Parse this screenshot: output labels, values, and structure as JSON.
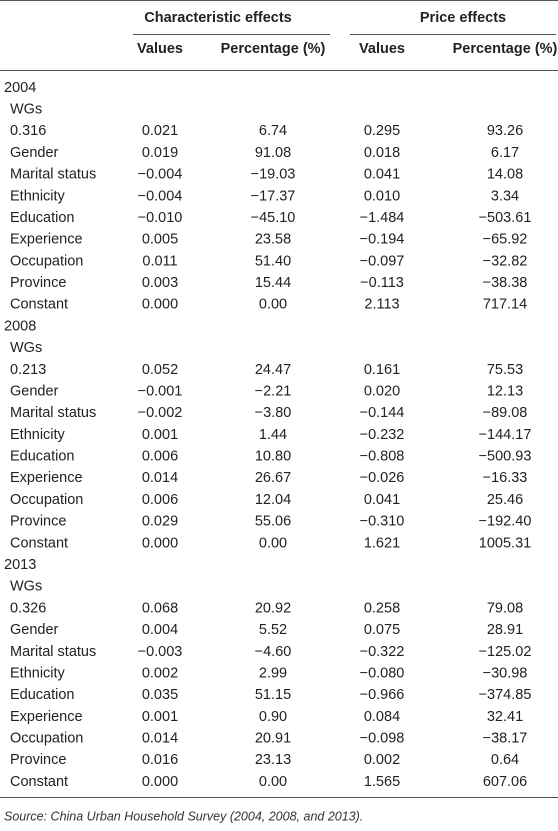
{
  "table": {
    "group_headers": [
      "Characteristic effects",
      "Price effects"
    ],
    "column_headers": [
      "Values",
      "Percentage (%)",
      "Values",
      "Percentage (%)"
    ],
    "sections": [
      {
        "year": "2004",
        "subheader": "WGs",
        "rows": [
          [
            "0.316",
            "0.021",
            "6.74",
            "0.295",
            "93.26"
          ],
          [
            "Gender",
            "0.019",
            "91.08",
            "0.018",
            "6.17"
          ],
          [
            "Marital status",
            "−0.004",
            "−19.03",
            "0.041",
            "14.08"
          ],
          [
            "Ethnicity",
            "−0.004",
            "−17.37",
            "0.010",
            "3.34"
          ],
          [
            "Education",
            "−0.010",
            "−45.10",
            "−1.484",
            "−503.61"
          ],
          [
            "Experience",
            "0.005",
            "23.58",
            "−0.194",
            "−65.92"
          ],
          [
            "Occupation",
            "0.011",
            "51.40",
            "−0.097",
            "−32.82"
          ],
          [
            "Province",
            "0.003",
            "15.44",
            "−0.113",
            "−38.38"
          ],
          [
            "Constant",
            "0.000",
            "0.00",
            "2.113",
            "717.14"
          ]
        ]
      },
      {
        "year": "2008",
        "subheader": "WGs",
        "rows": [
          [
            "0.213",
            "0.052",
            "24.47",
            "0.161",
            "75.53"
          ],
          [
            "Gender",
            "−0.001",
            "−2.21",
            "0.020",
            "12.13"
          ],
          [
            "Marital status",
            "−0.002",
            "−3.80",
            "−0.144",
            "−89.08"
          ],
          [
            "Ethnicity",
            "0.001",
            "1.44",
            "−0.232",
            "−144.17"
          ],
          [
            "Education",
            "0.006",
            "10.80",
            "−0.808",
            "−500.93"
          ],
          [
            "Experience",
            "0.014",
            "26.67",
            "−0.026",
            "−16.33"
          ],
          [
            "Occupation",
            "0.006",
            "12.04",
            "0.041",
            "25.46"
          ],
          [
            "Province",
            "0.029",
            "55.06",
            "−0.310",
            "−192.40"
          ],
          [
            "Constant",
            "0.000",
            "0.00",
            "1.621",
            "1005.31"
          ]
        ]
      },
      {
        "year": "2013",
        "subheader": "WGs",
        "rows": [
          [
            "0.326",
            "0.068",
            "20.92",
            "0.258",
            "79.08"
          ],
          [
            "Gender",
            "0.004",
            "5.52",
            "0.075",
            "28.91"
          ],
          [
            "Marital status",
            "−0.003",
            "−4.60",
            "−0.322",
            "−125.02"
          ],
          [
            "Ethnicity",
            "0.002",
            "2.99",
            "−0.080",
            "−30.98"
          ],
          [
            "Education",
            "0.035",
            "51.15",
            "−0.966",
            "−374.85"
          ],
          [
            "Experience",
            "0.001",
            "0.90",
            "0.084",
            "32.41"
          ],
          [
            "Occupation",
            "0.014",
            "20.91",
            "−0.098",
            "−38.17"
          ],
          [
            "Province",
            "0.016",
            "23.13",
            "0.002",
            "0.64"
          ],
          [
            "Constant",
            "0.000",
            "0.00",
            "1.565",
            "607.06"
          ]
        ]
      }
    ],
    "source": "Source: China Urban Household Survey (2004, 2008, and 2013)."
  }
}
